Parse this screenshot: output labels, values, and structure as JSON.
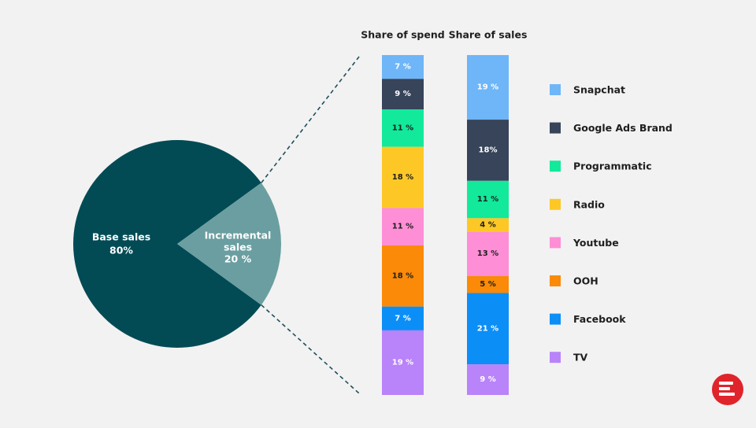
{
  "chart_data": [
    {
      "type": "pie",
      "categories": [
        "Base sales",
        "Incremental sales"
      ],
      "labels": [
        [
          "Base sales",
          "80%"
        ],
        [
          "Incremental",
          "sales",
          "20 %"
        ]
      ],
      "values": [
        80,
        20
      ]
    },
    {
      "type": "bar",
      "stacked": true,
      "orientation": "vertical",
      "series_labels": [
        "Share of spend",
        "Share of sales"
      ],
      "categories": [
        "Snapchat",
        "Google Ads Brand",
        "Programmatic",
        "Radio",
        "Youtube",
        "OOH",
        "Facebook",
        "TV"
      ],
      "series": [
        {
          "name": "Share of spend",
          "values": [
            7,
            9,
            11,
            18,
            11,
            18,
            7,
            19
          ],
          "labels": [
            "7 %",
            "9 %",
            "11 %",
            "18 %",
            "11 %",
            "18 %",
            "7 %",
            "19 %"
          ]
        },
        {
          "name": "Share of sales",
          "values": [
            19,
            18,
            11,
            4,
            13,
            5,
            21,
            9
          ],
          "labels": [
            "19 %",
            "18%",
            "11 %",
            "4 %",
            "13 %",
            "5 %",
            "21 %",
            "9 %"
          ]
        }
      ],
      "legend": [
        "Snapchat",
        "Google Ads Brand",
        "Programmatic",
        "Radio",
        "Youtube",
        "OOH",
        "Facebook",
        "TV"
      ],
      "legend_position": "right"
    }
  ],
  "colors": {
    "base": "#024b55",
    "incremental": "#6b9ea0",
    "connector": "#1f4e5a",
    "segments": [
      "#6eb6f8",
      "#37445a",
      "#12e99b",
      "#fdc826",
      "#fe8ed5",
      "#fa8a07",
      "#0c8ef7",
      "#b983f9"
    ],
    "dark_text": "#1e1e1e",
    "light_text": "#ffffff",
    "logo": "#e0242b"
  },
  "logo": {
    "icon": "brand-logo-icon"
  }
}
